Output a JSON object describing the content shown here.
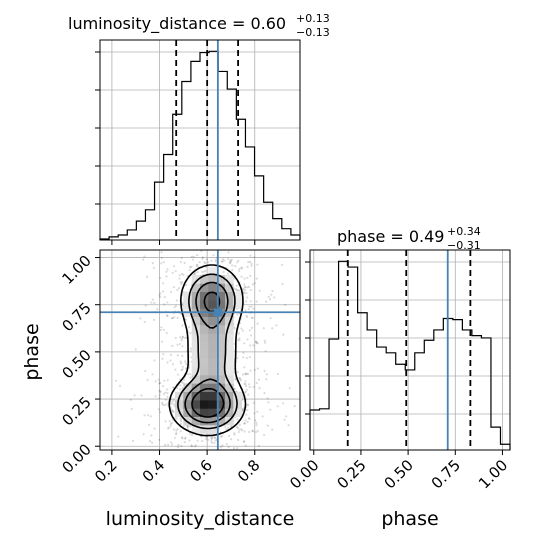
{
  "chart_data": [
    {
      "type": "histogram",
      "panel": "top-left",
      "title_param": "luminosity_distance",
      "title_median": "0.60",
      "title_plus": "+0.13",
      "title_minus": "−0.13",
      "x": [
        0.15,
        0.19,
        0.23,
        0.27,
        0.31,
        0.35,
        0.39,
        0.43,
        0.47,
        0.51,
        0.55,
        0.59,
        0.63,
        0.67,
        0.71,
        0.75,
        0.79,
        0.83,
        0.87,
        0.91,
        0.95,
        0.99
      ],
      "y": [
        0.8,
        2.5,
        4.0,
        8.0,
        15.0,
        24.0,
        46.0,
        68.0,
        100.0,
        126.0,
        142.0,
        149.0,
        150.0,
        134.0,
        120.0,
        96.0,
        74.0,
        51.0,
        30.0,
        17.0,
        9.0,
        4.0
      ],
      "xlim": [
        0.15,
        0.99
      ],
      "quantiles": [
        0.47,
        0.6,
        0.73
      ],
      "truth": 0.645
    },
    {
      "type": "histogram",
      "panel": "bottom-right",
      "title_param": "phase",
      "title_median": "0.49",
      "title_plus": "+0.34",
      "title_minus": "−0.31",
      "x": [
        -0.02,
        0.03,
        0.09,
        0.14,
        0.19,
        0.25,
        0.3,
        0.35,
        0.41,
        0.46,
        0.51,
        0.57,
        0.62,
        0.67,
        0.72,
        0.78,
        0.83,
        0.88,
        0.94,
        0.99,
        1.04
      ],
      "y": [
        35,
        36,
        97,
        165,
        160,
        120,
        105,
        90,
        85,
        75,
        70,
        85,
        96,
        105,
        115,
        114,
        105,
        100,
        98,
        20,
        5
      ],
      "xlim": [
        -0.02,
        1.04
      ],
      "xticks": [
        "0.00",
        "0.25",
        "0.50",
        "0.75",
        "1.00"
      ],
      "xlabel": "phase",
      "quantiles": [
        0.18,
        0.49,
        0.83
      ],
      "truth": 0.71
    },
    {
      "type": "2d-density",
      "panel": "bottom-left",
      "xlabel": "luminosity_distance",
      "ylabel": "phase",
      "xlim": [
        0.15,
        0.99
      ],
      "ylim": [
        -0.02,
        1.04
      ],
      "xticks": [
        "0.2",
        "0.4",
        "0.6",
        "0.8"
      ],
      "yticks": [
        "0.00",
        "0.25",
        "0.50",
        "0.75",
        "1.00"
      ],
      "truth": [
        0.645,
        0.71
      ]
    }
  ],
  "colors": {
    "truth": "#4682b4",
    "step": "#000000",
    "grid": "#b0b0b0"
  }
}
